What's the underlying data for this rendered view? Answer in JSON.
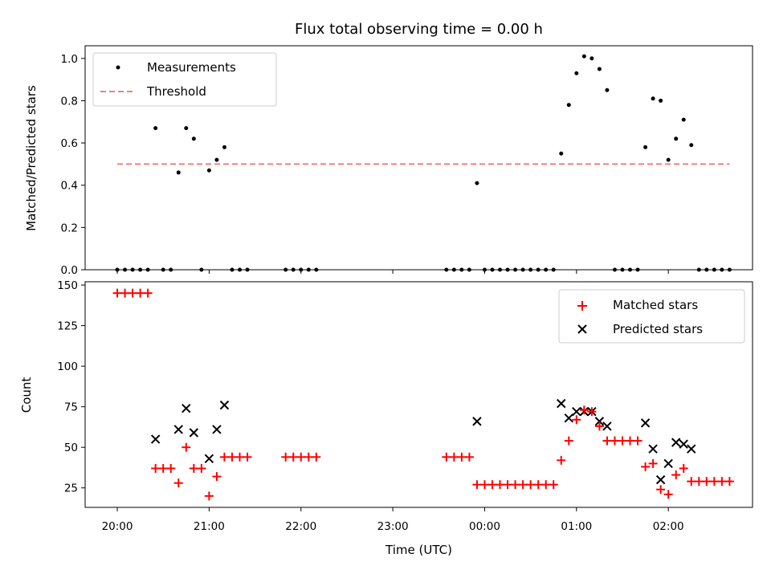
{
  "chart_data": {
    "type": "scatter",
    "title": "Flux total observing time = 0.00 h",
    "xlabel": "Time (UTC)",
    "xlim": [
      "19:39",
      "02:55"
    ],
    "xticks": [
      "20:00",
      "21:00",
      "22:00",
      "23:00",
      "00:00",
      "01:00",
      "02:00"
    ],
    "top": {
      "ylabel": "Matched/Predicted stars",
      "ylim": [
        0.0,
        1.06
      ],
      "yticks": [
        "0.0",
        "0.2",
        "0.4",
        "0.6",
        "0.8",
        "1.0"
      ],
      "legend_position": "top-left",
      "threshold": {
        "name": "Threshold",
        "value": 0.5,
        "x_range": [
          "20:00",
          "02:40"
        ],
        "color": "#f08080"
      },
      "measurements": {
        "name": "Measurements",
        "color": "#000000",
        "points": [
          [
            "20:00",
            0.0
          ],
          [
            "20:05",
            0.0
          ],
          [
            "20:10",
            0.0
          ],
          [
            "20:15",
            0.0
          ],
          [
            "20:20",
            0.0
          ],
          [
            "20:25",
            0.67
          ],
          [
            "20:30",
            0.0
          ],
          [
            "20:35",
            0.0
          ],
          [
            "20:40",
            0.46
          ],
          [
            "20:45",
            0.67
          ],
          [
            "20:50",
            0.62
          ],
          [
            "20:55",
            0.0
          ],
          [
            "21:00",
            0.47
          ],
          [
            "21:05",
            0.52
          ],
          [
            "21:10",
            0.58
          ],
          [
            "21:15",
            0.0
          ],
          [
            "21:20",
            0.0
          ],
          [
            "21:25",
            0.0
          ],
          [
            "21:50",
            0.0
          ],
          [
            "21:55",
            0.0
          ],
          [
            "22:00",
            0.0
          ],
          [
            "22:05",
            0.0
          ],
          [
            "22:10",
            0.0
          ],
          [
            "23:35",
            0.0
          ],
          [
            "23:40",
            0.0
          ],
          [
            "23:45",
            0.0
          ],
          [
            "23:50",
            0.0
          ],
          [
            "23:55",
            0.41
          ],
          [
            "00:00",
            0.0
          ],
          [
            "00:05",
            0.0
          ],
          [
            "00:10",
            0.0
          ],
          [
            "00:15",
            0.0
          ],
          [
            "00:20",
            0.0
          ],
          [
            "00:25",
            0.0
          ],
          [
            "00:30",
            0.0
          ],
          [
            "00:35",
            0.0
          ],
          [
            "00:40",
            0.0
          ],
          [
            "00:45",
            0.0
          ],
          [
            "00:50",
            0.55
          ],
          [
            "00:55",
            0.78
          ],
          [
            "01:00",
            0.93
          ],
          [
            "01:05",
            1.01
          ],
          [
            "01:10",
            1.0
          ],
          [
            "01:15",
            0.95
          ],
          [
            "01:20",
            0.85
          ],
          [
            "01:25",
            0.0
          ],
          [
            "01:30",
            0.0
          ],
          [
            "01:35",
            0.0
          ],
          [
            "01:40",
            0.0
          ],
          [
            "01:45",
            0.58
          ],
          [
            "01:50",
            0.81
          ],
          [
            "01:55",
            0.8
          ],
          [
            "02:00",
            0.52
          ],
          [
            "02:05",
            0.62
          ],
          [
            "02:10",
            0.71
          ],
          [
            "02:15",
            0.59
          ],
          [
            "02:20",
            0.0
          ],
          [
            "02:25",
            0.0
          ],
          [
            "02:30",
            0.0
          ],
          [
            "02:35",
            0.0
          ],
          [
            "02:40",
            0.0
          ]
        ]
      }
    },
    "bottom": {
      "ylabel": "Count",
      "ylim": [
        13,
        152
      ],
      "yticks": [
        "25",
        "50",
        "75",
        "100",
        "125",
        "150"
      ],
      "legend_position": "top-right",
      "matched": {
        "name": "Matched stars",
        "color": "#ff0000",
        "points": [
          [
            "20:00",
            145
          ],
          [
            "20:05",
            145
          ],
          [
            "20:10",
            145
          ],
          [
            "20:15",
            145
          ],
          [
            "20:20",
            145
          ],
          [
            "20:25",
            37
          ],
          [
            "20:30",
            37
          ],
          [
            "20:35",
            37
          ],
          [
            "20:40",
            28
          ],
          [
            "20:45",
            50
          ],
          [
            "20:50",
            37
          ],
          [
            "20:55",
            37
          ],
          [
            "21:00",
            20
          ],
          [
            "21:05",
            32
          ],
          [
            "21:10",
            44
          ],
          [
            "21:15",
            44
          ],
          [
            "21:20",
            44
          ],
          [
            "21:25",
            44
          ],
          [
            "21:50",
            44
          ],
          [
            "21:55",
            44
          ],
          [
            "22:00",
            44
          ],
          [
            "22:05",
            44
          ],
          [
            "22:10",
            44
          ],
          [
            "23:35",
            44
          ],
          [
            "23:40",
            44
          ],
          [
            "23:45",
            44
          ],
          [
            "23:50",
            44
          ],
          [
            "23:55",
            27
          ],
          [
            "00:00",
            27
          ],
          [
            "00:05",
            27
          ],
          [
            "00:10",
            27
          ],
          [
            "00:15",
            27
          ],
          [
            "00:20",
            27
          ],
          [
            "00:25",
            27
          ],
          [
            "00:30",
            27
          ],
          [
            "00:35",
            27
          ],
          [
            "00:40",
            27
          ],
          [
            "00:45",
            27
          ],
          [
            "00:50",
            42
          ],
          [
            "00:55",
            54
          ],
          [
            "01:00",
            67
          ],
          [
            "01:05",
            73
          ],
          [
            "01:10",
            72
          ],
          [
            "01:15",
            63
          ],
          [
            "01:20",
            54
          ],
          [
            "01:25",
            54
          ],
          [
            "01:30",
            54
          ],
          [
            "01:35",
            54
          ],
          [
            "01:40",
            54
          ],
          [
            "01:45",
            38
          ],
          [
            "01:50",
            40
          ],
          [
            "01:55",
            24
          ],
          [
            "02:00",
            21
          ],
          [
            "02:05",
            33
          ],
          [
            "02:10",
            37
          ],
          [
            "02:15",
            29
          ],
          [
            "02:20",
            29
          ],
          [
            "02:25",
            29
          ],
          [
            "02:30",
            29
          ],
          [
            "02:35",
            29
          ],
          [
            "02:40",
            29
          ]
        ]
      },
      "predicted": {
        "name": "Predicted stars",
        "color": "#000000",
        "points": [
          [
            "20:25",
            55
          ],
          [
            "20:40",
            61
          ],
          [
            "20:45",
            74
          ],
          [
            "20:50",
            59
          ],
          [
            "21:00",
            43
          ],
          [
            "21:05",
            61
          ],
          [
            "21:10",
            76
          ],
          [
            "23:55",
            66
          ],
          [
            "00:50",
            77
          ],
          [
            "00:55",
            68
          ],
          [
            "01:00",
            72
          ],
          [
            "01:05",
            72
          ],
          [
            "01:10",
            72
          ],
          [
            "01:15",
            66
          ],
          [
            "01:20",
            63
          ],
          [
            "01:45",
            65
          ],
          [
            "01:50",
            49
          ],
          [
            "01:55",
            30
          ],
          [
            "02:00",
            40
          ],
          [
            "02:05",
            53
          ],
          [
            "02:10",
            52
          ],
          [
            "02:15",
            49
          ]
        ]
      }
    }
  }
}
